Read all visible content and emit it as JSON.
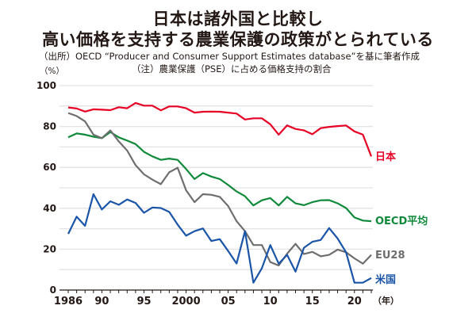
{
  "header": {
    "title_line1": "日本は諸外国と比較し",
    "title_line2": "高い価格を支持する農業保護の政策がとられている",
    "source": "（出所）OECD “Producer and Consumer Support Estimates database”を基に筆者作成",
    "note": "（注）農業保護（PSE）に占める価格支持の割合"
  },
  "chart_data": {
    "type": "line",
    "title": "日本は諸外国と比較し 高い価格を支持する農業保護の政策がとられている",
    "xlabel": "（年）",
    "ylabel": "（%）",
    "ylim": [
      0,
      100
    ],
    "xlim": [
      1986,
      2022
    ],
    "grid": true,
    "legend": "right-end labels",
    "yticks": [
      "0",
      "20",
      "40",
      "60",
      "80",
      "100"
    ],
    "ytick_values": [
      0,
      20,
      40,
      60,
      80,
      100
    ],
    "xticks": [
      {
        "year": 1986,
        "label": "1986"
      },
      {
        "year": 1990,
        "label": "90"
      },
      {
        "year": 1995,
        "label": "95"
      },
      {
        "year": 2000,
        "label": "2000"
      },
      {
        "year": 2005,
        "label": "05"
      },
      {
        "year": 2010,
        "label": "10"
      },
      {
        "year": 2015,
        "label": "15"
      },
      {
        "year": 2020,
        "label": "20"
      }
    ],
    "x": [
      1986,
      1987,
      1988,
      1989,
      1990,
      1991,
      1992,
      1993,
      1994,
      1995,
      1996,
      1997,
      1998,
      1999,
      2000,
      2001,
      2002,
      2003,
      2004,
      2005,
      2006,
      2007,
      2008,
      2009,
      2010,
      2011,
      2012,
      2013,
      2014,
      2015,
      2016,
      2017,
      2018,
      2019,
      2020,
      2021,
      2022
    ],
    "series": [
      {
        "name": "日本",
        "color": "#e60026",
        "values": [
          89.3,
          88.8,
          87.3,
          88.4,
          88.2,
          88.0,
          89.4,
          88.9,
          91.5,
          90.2,
          90.2,
          87.9,
          89.8,
          89.8,
          88.9,
          86.8,
          87.2,
          87.3,
          87.2,
          86.8,
          86.3,
          83.4,
          84.0,
          84.0,
          81.1,
          76.0,
          80.5,
          78.8,
          78.1,
          76.2,
          79.2,
          79.8,
          80.2,
          80.5,
          77.6,
          76.0,
          65.4
        ]
      },
      {
        "name": "OECD平均",
        "color": "#0f8a3a",
        "values": [
          74.7,
          76.6,
          76.0,
          75.0,
          74.3,
          77.3,
          74.7,
          73.1,
          71.4,
          67.6,
          65.4,
          63.7,
          64.3,
          63.7,
          59.2,
          54.3,
          57.2,
          55.5,
          54.3,
          51.4,
          48.2,
          45.9,
          41.4,
          43.9,
          45.0,
          41.4,
          45.6,
          42.4,
          41.5,
          43.0,
          43.9,
          44.0,
          42.4,
          40.1,
          35.5,
          34.0,
          33.7
        ]
      },
      {
        "name": "EU28",
        "color": "#6e6e6e",
        "values": [
          86.6,
          85.1,
          82.5,
          76.0,
          74.3,
          78.1,
          72.7,
          68.2,
          61.1,
          56.6,
          54.0,
          51.8,
          57.6,
          59.8,
          48.8,
          43.0,
          46.9,
          46.6,
          45.6,
          41.1,
          33.7,
          28.8,
          22.0,
          22.0,
          13.7,
          12.0,
          17.8,
          22.6,
          17.6,
          18.7,
          16.5,
          17.2,
          19.8,
          18.5,
          15.5,
          12.9,
          17.2
        ]
      },
      {
        "name": "米国",
        "color": "#1a55a8",
        "values": [
          27.5,
          35.9,
          31.4,
          46.9,
          39.4,
          43.4,
          41.7,
          44.3,
          42.6,
          37.8,
          40.4,
          40.1,
          38.2,
          32.0,
          26.6,
          28.8,
          30.1,
          24.0,
          24.9,
          19.1,
          13.0,
          28.8,
          3.6,
          10.7,
          22.0,
          12.9,
          17.2,
          9.0,
          20.7,
          23.6,
          24.5,
          30.3,
          25.2,
          18.5,
          3.6,
          3.6,
          5.9
        ]
      }
    ]
  }
}
